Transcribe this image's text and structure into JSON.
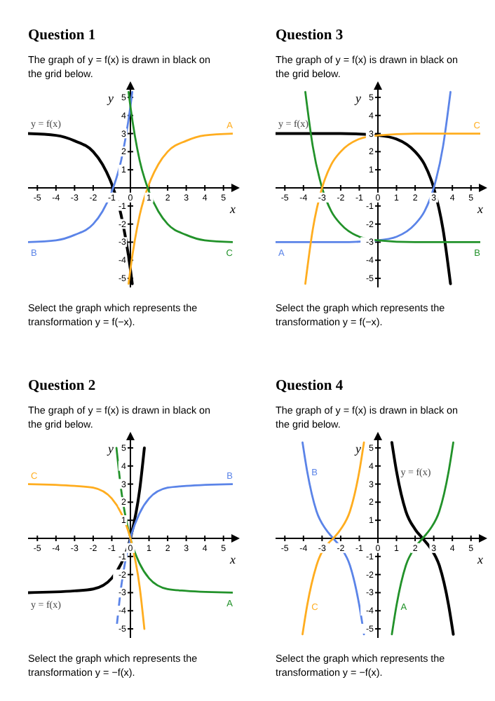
{
  "chart_data": [
    {
      "type": "line",
      "title": "Question 1",
      "subtitle": "The graph of y = f(x) is drawn in black on the grid below.",
      "xlabel": "x",
      "ylabel": "y",
      "annotations": [
        "Select the graph which represents the transformation y = f(−x)."
      ],
      "xlim": [
        -5.5,
        5.5
      ],
      "ylim": [
        -5.5,
        5.5
      ],
      "xticks": [
        -5,
        -4,
        -3,
        -2,
        -1,
        0,
        1,
        2,
        3,
        4,
        5
      ],
      "yticks": [
        -5,
        -4,
        -3,
        -2,
        -1,
        1,
        2,
        3,
        4,
        5
      ],
      "series": [
        {
          "name": "y = f(x)",
          "color": "#000000",
          "x": [
            -5.5,
            -4,
            -3,
            -2,
            -1.5,
            -1,
            -0.5,
            0,
            0.1
          ],
          "values": [
            3.0,
            2.9,
            2.6,
            2.0,
            1.3,
            0.2,
            -1.5,
            -4.5,
            -5.3
          ]
        },
        {
          "name": "A",
          "color": "#ffad1f",
          "x": [
            -0.1,
            0,
            0.5,
            1,
            1.5,
            2,
            3,
            4,
            5.5
          ],
          "values": [
            -5.3,
            -4.5,
            -1.5,
            0.2,
            1.3,
            2.0,
            2.6,
            2.9,
            3.0
          ]
        },
        {
          "name": "B",
          "color": "#5b84e8",
          "x": [
            -5.5,
            -4,
            -3,
            -2,
            -1.5,
            -1,
            -0.5,
            0,
            0.1
          ],
          "values": [
            -3.0,
            -2.9,
            -2.6,
            -2.0,
            -1.3,
            -0.2,
            1.5,
            4.5,
            5.3
          ]
        },
        {
          "name": "C",
          "color": "#22922a",
          "x": [
            -0.1,
            0,
            0.5,
            1,
            1.5,
            2,
            3,
            4,
            5.5
          ],
          "values": [
            5.3,
            4.5,
            1.5,
            -0.2,
            -1.3,
            -2.0,
            -2.6,
            -2.9,
            -3.0
          ]
        }
      ]
    },
    {
      "type": "line",
      "title": "Question 3",
      "subtitle": "The graph of y = f(x) is drawn in black on the grid below.",
      "xlabel": "x",
      "ylabel": "y",
      "annotations": [
        "Select the graph which represents the transformation y = f(−x)."
      ],
      "xlim": [
        -5.5,
        5.5
      ],
      "ylim": [
        -5.5,
        5.5
      ],
      "xticks": [
        -5,
        -4,
        -3,
        -2,
        -1,
        0,
        1,
        2,
        3,
        4,
        5
      ],
      "yticks": [
        -5,
        -4,
        -3,
        -2,
        -1,
        1,
        2,
        3,
        4,
        5
      ],
      "series": [
        {
          "name": "y = f(x)",
          "color": "#000000",
          "x": [
            -5.5,
            -2,
            0,
            1,
            2,
            2.5,
            3,
            3.5,
            3.9
          ],
          "values": [
            3.0,
            3.0,
            2.9,
            2.7,
            2.0,
            1.3,
            0.0,
            -2.3,
            -5.3
          ]
        },
        {
          "name": "A",
          "color": "#5b84e8",
          "x": [
            -5.5,
            -2,
            0,
            1,
            2,
            2.5,
            3,
            3.5,
            3.9
          ],
          "values": [
            -3.0,
            -3.0,
            -2.9,
            -2.7,
            -2.0,
            -1.3,
            0.0,
            2.3,
            5.3
          ]
        },
        {
          "name": "B",
          "color": "#22922a",
          "x": [
            -3.9,
            -3.5,
            -3,
            -2.5,
            -2,
            -1,
            0,
            2,
            5.5
          ],
          "values": [
            5.3,
            2.3,
            0.0,
            -1.3,
            -2.0,
            -2.7,
            -2.9,
            -3.0,
            -3.0
          ]
        },
        {
          "name": "C",
          "color": "#ffad1f",
          "x": [
            -3.9,
            -3.5,
            -3,
            -2.5,
            -2,
            -1,
            0,
            2,
            5.5
          ],
          "values": [
            -5.3,
            -2.3,
            0.0,
            1.3,
            2.0,
            2.7,
            2.9,
            3.0,
            3.0
          ]
        }
      ]
    },
    {
      "type": "line",
      "title": "Question 2",
      "subtitle": "The graph of y = f(x) is drawn in black on the grid below.",
      "xlabel": "x",
      "ylabel": "y",
      "annotations": [
        "Select the graph which represents the transformation y = −f(x)."
      ],
      "xlim": [
        -5.5,
        5.5
      ],
      "ylim": [
        -5.5,
        5.5
      ],
      "xticks": [
        -5,
        -4,
        -3,
        -2,
        -1,
        0,
        1,
        2,
        3,
        4,
        5
      ],
      "yticks": [
        -5,
        -4,
        -3,
        -2,
        -1,
        1,
        2,
        3,
        4,
        5
      ],
      "series": [
        {
          "name": "y = f(x)",
          "color": "#000000",
          "x": [
            -5.5,
            -3,
            -2,
            -1,
            -0.5,
            0,
            0.5,
            0.75
          ],
          "values": [
            -3.0,
            -2.9,
            -2.8,
            -2.2,
            -1.4,
            0.0,
            2.7,
            5.0
          ]
        },
        {
          "name": "A",
          "color": "#22922a",
          "x": [
            -0.75,
            -0.5,
            0,
            0.5,
            1,
            2,
            3,
            5.5
          ],
          "values": [
            5.0,
            2.7,
            0.0,
            -1.4,
            -2.2,
            -2.8,
            -2.9,
            -3.0
          ]
        },
        {
          "name": "B",
          "color": "#5b84e8",
          "x": [
            -0.75,
            -0.5,
            0,
            0.5,
            1,
            2,
            3,
            5.5
          ],
          "values": [
            -5.0,
            -2.7,
            0.0,
            1.4,
            2.2,
            2.8,
            2.9,
            3.0
          ]
        },
        {
          "name": "C",
          "color": "#ffad1f",
          "x": [
            -5.5,
            -3,
            -2,
            -1,
            -0.5,
            0,
            0.5,
            0.75
          ],
          "values": [
            3.0,
            2.9,
            2.8,
            2.2,
            1.4,
            0.0,
            -2.7,
            -5.0
          ]
        }
      ]
    },
    {
      "type": "line",
      "title": "Question 4",
      "subtitle": "The graph of y = f(x) is drawn in black on the grid below.",
      "xlabel": "x",
      "ylabel": "y",
      "annotations": [
        "Select the graph which represents the transformation y = −f(x)."
      ],
      "xlim": [
        -5.5,
        5.5
      ],
      "ylim": [
        -5.5,
        5.5
      ],
      "xticks": [
        -5,
        -4,
        -3,
        -2,
        -1,
        0,
        1,
        2,
        3,
        4,
        5
      ],
      "yticks": [
        -5,
        -4,
        -3,
        -2,
        -1,
        1,
        2,
        3,
        4,
        5
      ],
      "series": [
        {
          "name": "y = f(x)",
          "color": "#000000",
          "x": [
            0.75,
            1,
            1.5,
            2,
            2.4,
            2.8,
            3.3,
            3.8,
            4.05
          ],
          "values": [
            5.3,
            3.7,
            1.5,
            0.5,
            0.0,
            -0.5,
            -1.5,
            -3.7,
            -5.3
          ]
        },
        {
          "name": "A",
          "color": "#22922a",
          "x": [
            0.75,
            1,
            1.5,
            2,
            2.4,
            2.8,
            3.3,
            3.8,
            4.05
          ],
          "values": [
            -5.3,
            -3.7,
            -1.5,
            -0.5,
            0.0,
            0.5,
            1.5,
            3.7,
            5.3
          ]
        },
        {
          "name": "B",
          "color": "#5b84e8",
          "x": [
            -4.05,
            -3.8,
            -3.3,
            -2.8,
            -2.4,
            -2,
            -1.5,
            -1,
            -0.75
          ],
          "values": [
            5.3,
            3.7,
            1.5,
            0.5,
            0.0,
            -0.5,
            -1.5,
            -3.7,
            -5.3
          ]
        },
        {
          "name": "C",
          "color": "#ffad1f",
          "x": [
            -4.05,
            -3.8,
            -3.3,
            -2.6,
            -2.4,
            -2,
            -1.5,
            -1,
            -0.75
          ],
          "values": [
            -5.3,
            -3.7,
            -1.5,
            -0.2,
            0.0,
            0.5,
            1.5,
            3.7,
            5.3
          ]
        }
      ]
    }
  ]
}
